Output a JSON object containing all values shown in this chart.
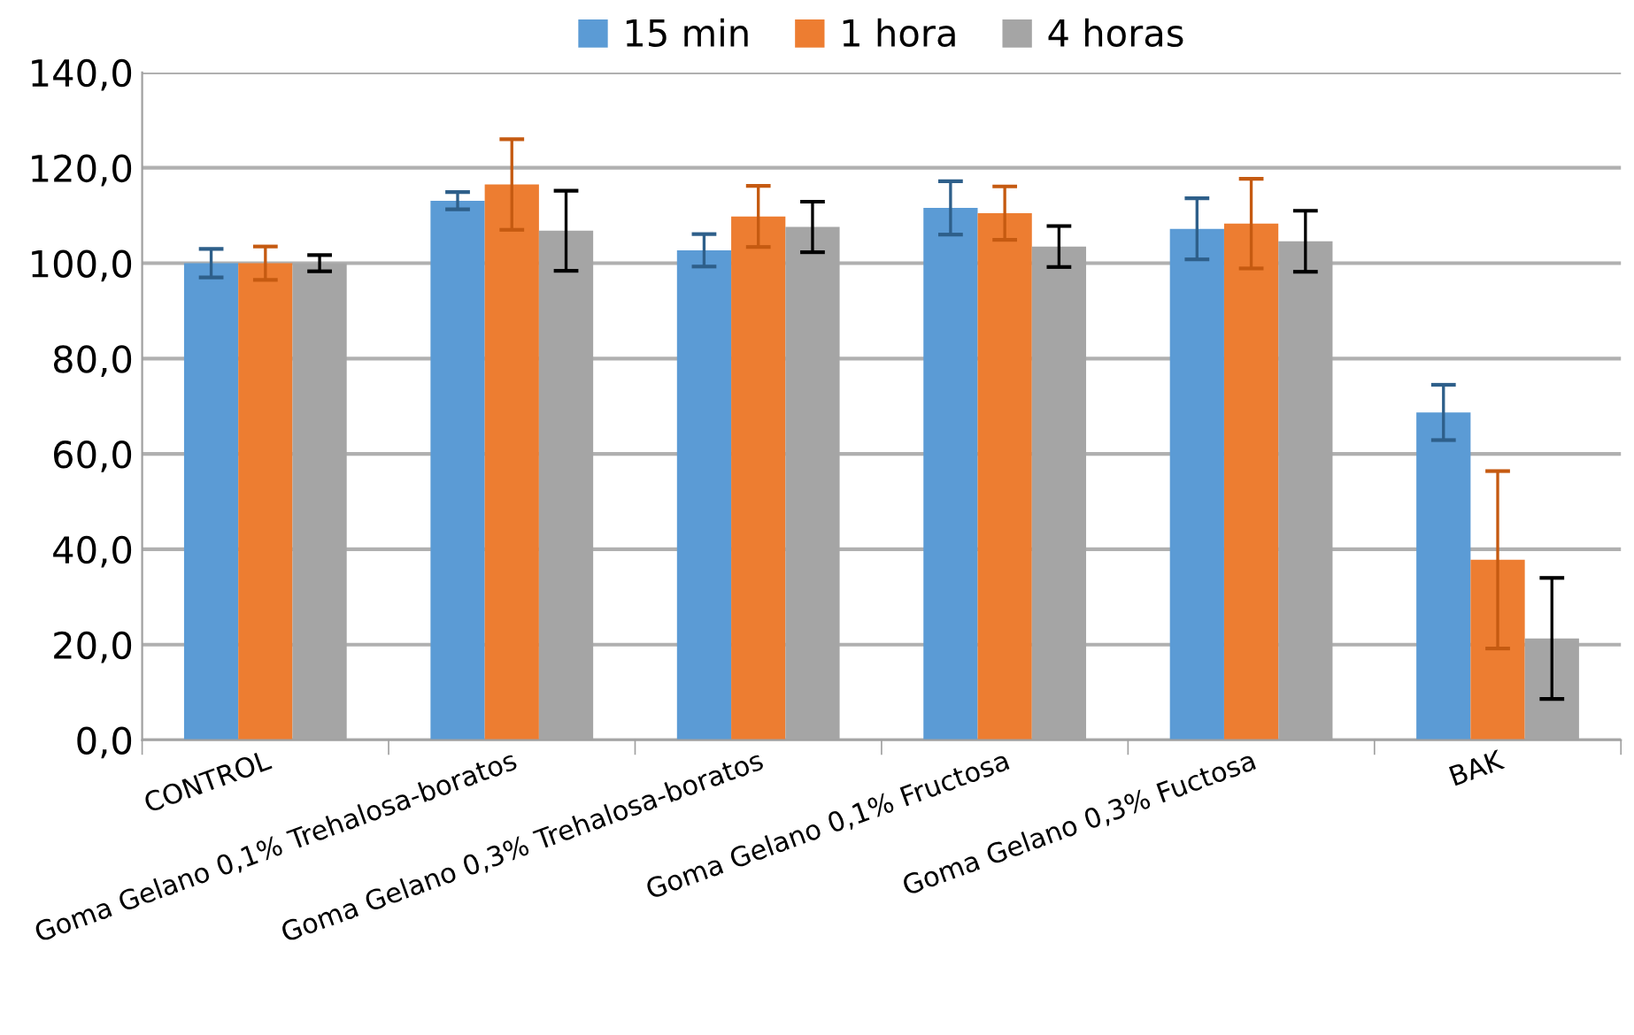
{
  "chart_data": {
    "type": "bar",
    "categories": [
      "CONTROL",
      "Goma Gelano 0,1% Trehalosa-boratos",
      "Goma Gelano 0,3% Trehalosa-boratos",
      "Goma Gelano 0,1% Fructosa",
      "Goma Gelano 0,3% Fuctosa",
      "BAK"
    ],
    "series": [
      {
        "name": "15 min",
        "color": "#5b9bd5",
        "values": [
          100,
          113.1,
          102.7,
          111.6,
          107.2,
          68.7
        ],
        "errors": [
          3,
          1.8,
          3.4,
          5.6,
          6.4,
          5.8
        ]
      },
      {
        "name": "1 hora",
        "color": "#ed7d31",
        "values": [
          100,
          116.5,
          109.8,
          110.5,
          108.3,
          37.8
        ],
        "errors": [
          3.5,
          9.5,
          6.4,
          5.6,
          9.4,
          18.6
        ]
      },
      {
        "name": "4 horas",
        "color": "#a5a5a5",
        "values": [
          100,
          106.8,
          107.6,
          103.5,
          104.6,
          21.3
        ],
        "errors": [
          1.7,
          8.4,
          5.3,
          4.3,
          6.4,
          12.7
        ]
      }
    ],
    "ylim": [
      0,
      140
    ],
    "yticks": [
      {
        "value": 0,
        "label": "0,0"
      },
      {
        "value": 20,
        "label": "20,0"
      },
      {
        "value": 40,
        "label": "40,0"
      },
      {
        "value": 60,
        "label": "60,0"
      },
      {
        "value": 80,
        "label": "80,0"
      },
      {
        "value": 100,
        "label": "100,0"
      },
      {
        "value": 120,
        "label": "120,0"
      },
      {
        "value": 140,
        "label": "140,0"
      }
    ],
    "grid": "y",
    "legend": "top"
  }
}
